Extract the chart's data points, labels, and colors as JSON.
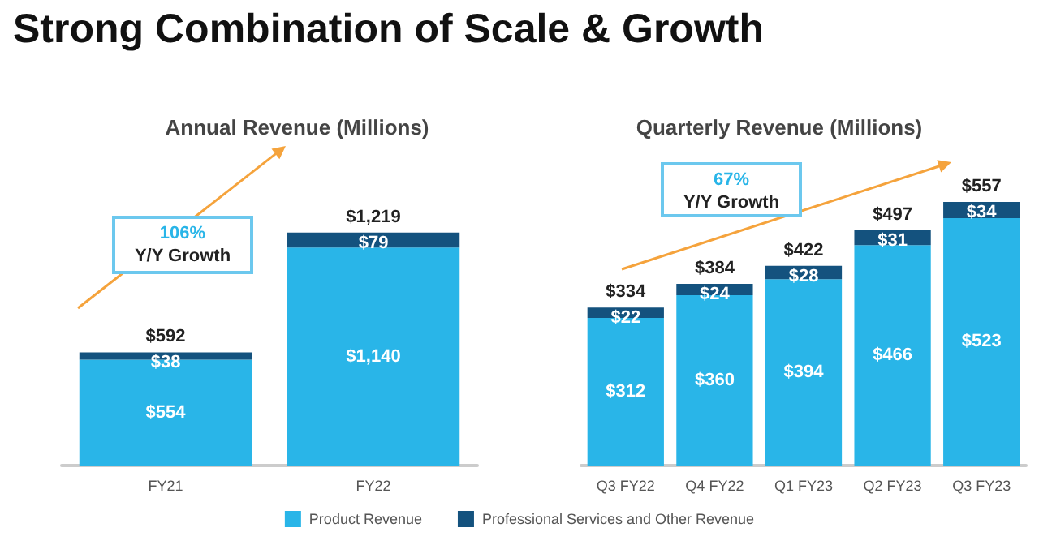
{
  "chart_data": [
    {
      "type": "bar",
      "title": "Annual Revenue (Millions)",
      "categories": [
        "FY21",
        "FY22"
      ],
      "stacked": true,
      "legend": "bottom",
      "series": [
        {
          "name": "Product Revenue",
          "color": "#29b5e8",
          "values": [
            554,
            1140
          ],
          "value_labels": [
            "$554",
            "$1,140"
          ]
        },
        {
          "name": "Professional Services and Other Revenue",
          "color": "#14527e",
          "values": [
            38,
            79
          ],
          "value_labels": [
            "$38",
            "$79"
          ]
        }
      ],
      "totals": [
        "$592",
        "$1,219"
      ],
      "annotations": [
        "Strong Combination of Scale & Growth",
        "106%\nY/Y Growth"
      ]
    },
    {
      "type": "bar",
      "title": "Quarterly Revenue (Millions)",
      "categories": [
        "Q3 FY22",
        "Q4 FY22",
        "Q1 FY23",
        "Q2 FY23",
        "Q3 FY23"
      ],
      "stacked": true,
      "series": [
        {
          "color": "#29b5e8",
          "values": [
            312,
            360,
            394,
            466,
            523
          ],
          "value_labels": [
            "$312",
            "$360",
            "$394",
            "$466",
            "$523"
          ]
        },
        {
          "color": "#14527e",
          "values": [
            22,
            24,
            28,
            31,
            34
          ],
          "value_labels": [
            "$22",
            "$24",
            "$28",
            "$31",
            "$34"
          ]
        }
      ],
      "totals": [
        "$334",
        "$384",
        "$422",
        "$497",
        "$557"
      ],
      "annotations": [
        "67%\nY/Y Growth"
      ]
    }
  ]
}
